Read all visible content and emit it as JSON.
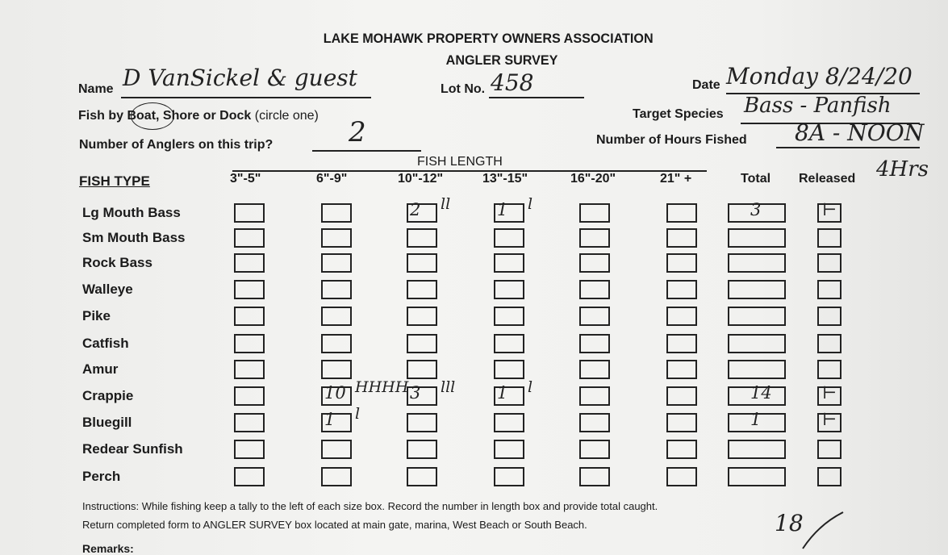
{
  "header": {
    "org": "LAKE MOHAWK PROPERTY OWNERS ASSOCIATION",
    "title": "ANGLER SURVEY"
  },
  "fields": {
    "name_label": "Name",
    "name_value": "D VanSickel & guest",
    "lot_label": "Lot No.",
    "lot_value": "458",
    "date_label": "Date",
    "date_value": "Monday 8/24/20",
    "fish_by_label_prefix": "Fish by",
    "fish_by_options": "Boat, Shore or Dock",
    "fish_by_hint": "(circle one)",
    "fish_by_selected": "Boat",
    "target_label": "Target Species",
    "target_value": "Bass - Panfish",
    "anglers_label": "Number of Anglers on this trip?",
    "anglers_value": "2",
    "hours_label": "Number of Hours Fished",
    "hours_value": "8A - NOON",
    "hours_note": "4Hrs"
  },
  "table": {
    "fish_length_label": "FISH LENGTH",
    "fish_type_header": "FISH TYPE",
    "columns": [
      "3\"-5\"",
      "6\"-9\"",
      "10\"-12\"",
      "13\"-15\"",
      "16\"-20\"",
      "21\" +",
      "Total",
      "Released"
    ],
    "rows": [
      {
        "type": "Lg Mouth Bass",
        "values": [
          "",
          "",
          "2",
          "1",
          "",
          "",
          "3",
          "⊢"
        ],
        "tallies": [
          "",
          "",
          "ll",
          "l",
          "",
          "",
          "",
          ""
        ]
      },
      {
        "type": "Sm Mouth Bass",
        "values": [
          "",
          "",
          "",
          "",
          "",
          "",
          "",
          ""
        ],
        "tallies": [
          "",
          "",
          "",
          "",
          "",
          "",
          "",
          ""
        ]
      },
      {
        "type": "Rock Bass",
        "values": [
          "",
          "",
          "",
          "",
          "",
          "",
          "",
          ""
        ],
        "tallies": [
          "",
          "",
          "",
          "",
          "",
          "",
          "",
          ""
        ]
      },
      {
        "type": "Walleye",
        "values": [
          "",
          "",
          "",
          "",
          "",
          "",
          "",
          ""
        ],
        "tallies": [
          "",
          "",
          "",
          "",
          "",
          "",
          "",
          ""
        ]
      },
      {
        "type": "Pike",
        "values": [
          "",
          "",
          "",
          "",
          "",
          "",
          "",
          ""
        ],
        "tallies": [
          "",
          "",
          "",
          "",
          "",
          "",
          "",
          ""
        ]
      },
      {
        "type": "Catfish",
        "values": [
          "",
          "",
          "",
          "",
          "",
          "",
          "",
          ""
        ],
        "tallies": [
          "",
          "",
          "",
          "",
          "",
          "",
          "",
          ""
        ]
      },
      {
        "type": "Amur",
        "values": [
          "",
          "",
          "",
          "",
          "",
          "",
          "",
          ""
        ],
        "tallies": [
          "",
          "",
          "",
          "",
          "",
          "",
          "",
          ""
        ]
      },
      {
        "type": "Crappie",
        "values": [
          "",
          "10",
          "3",
          "1",
          "",
          "",
          "14",
          "⊢"
        ],
        "tallies": [
          "",
          "HHHH",
          "lll",
          "l",
          "",
          "",
          "",
          ""
        ]
      },
      {
        "type": "Bluegill",
        "values": [
          "",
          "1",
          "",
          "",
          "",
          "",
          "1",
          "⊢"
        ],
        "tallies": [
          "",
          "l",
          "",
          "",
          "",
          "",
          "",
          ""
        ]
      },
      {
        "type": "Redear Sunfish",
        "values": [
          "",
          "",
          "",
          "",
          "",
          "",
          "",
          ""
        ],
        "tallies": [
          "",
          "",
          "",
          "",
          "",
          "",
          "",
          ""
        ]
      },
      {
        "type": "Perch",
        "values": [
          "",
          "",
          "",
          "",
          "",
          "",
          "",
          ""
        ],
        "tallies": [
          "",
          "",
          "",
          "",
          "",
          "",
          "",
          ""
        ]
      }
    ]
  },
  "footer": {
    "instructions_1": "Instructions: While fishing keep a tally to the left of each size box. Record the number in length box and provide total caught.",
    "instructions_2": "Return completed form to ANGLER SURVEY box located at main gate, marina, West Beach or South Beach.",
    "grand_total": "18",
    "remarks_label": "Remarks:"
  }
}
